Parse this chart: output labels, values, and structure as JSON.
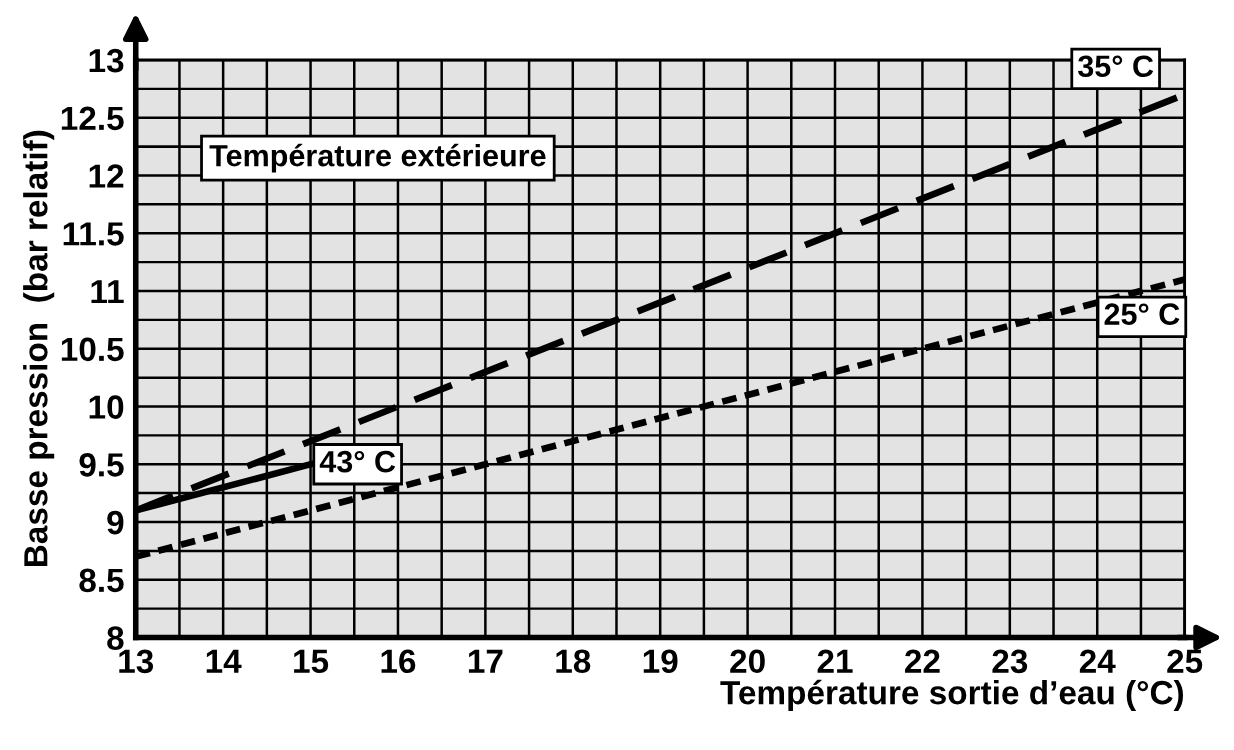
{
  "chart_data": {
    "type": "line",
    "xlabel": "Température sortie d’eau (°C)",
    "ylabel": "Basse pression  (bar relatif)",
    "annotations": [
      "Température extérieure"
    ],
    "series": [
      {
        "name": "35° C",
        "color": "#000000",
        "line_style": "dashed",
        "x": [
          13,
          25
        ],
        "values": [
          9.1,
          12.7
        ]
      },
      {
        "name": "25° C",
        "color": "#000000",
        "line_style": "dotted",
        "x": [
          13,
          25
        ],
        "values": [
          8.7,
          11.1
        ]
      },
      {
        "name": "43° C",
        "color": "#000000",
        "line_style": "solid",
        "x": [
          13,
          15
        ],
        "values": [
          9.1,
          9.5
        ]
      }
    ],
    "xlim": [
      13,
      25
    ],
    "ylim": [
      8,
      13
    ],
    "xticks": [
      13,
      14,
      15,
      16,
      17,
      18,
      19,
      20,
      21,
      22,
      23,
      24,
      25
    ],
    "yticks": [
      8,
      8.5,
      9,
      9.5,
      10,
      10.5,
      11,
      11.5,
      12,
      12.5,
      13
    ],
    "grid": true,
    "legend": false,
    "marker": "none"
  }
}
